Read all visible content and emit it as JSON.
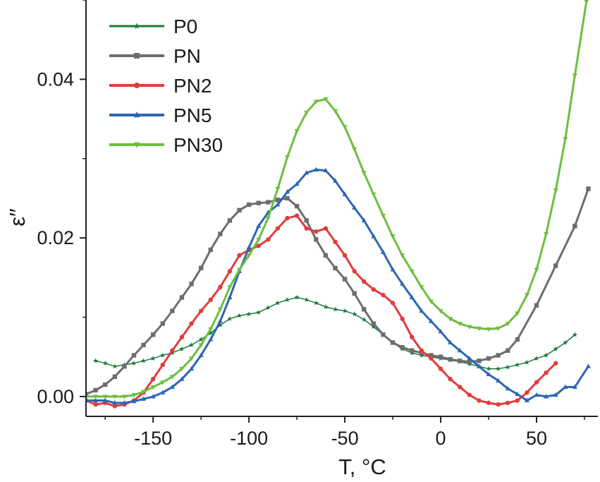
{
  "chart_data": {
    "type": "line",
    "xlabel": "T, °C",
    "ylabel": "ε′′",
    "xlim": [
      -185,
      82
    ],
    "ylim": [
      -0.0025,
      0.05
    ],
    "x_ticks": [
      -150,
      -100,
      -50,
      0,
      50
    ],
    "x_tick_labels": [
      "-150",
      "-100",
      "-50",
      "0",
      "50"
    ],
    "y_ticks": [
      0.0,
      0.02,
      0.04
    ],
    "y_tick_labels": [
      "0.00",
      "0.02",
      "0.04"
    ],
    "legend": {
      "position": "top-left",
      "entries": [
        "P0",
        "PN",
        "PN2",
        "PN5",
        "PN30"
      ]
    },
    "series": [
      {
        "name": "P0",
        "color": "#1e7a3a",
        "marker": "star",
        "x": [
          -180,
          -175,
          -170,
          -165,
          -160,
          -155,
          -150,
          -145,
          -140,
          -135,
          -130,
          -125,
          -120,
          -115,
          -110,
          -105,
          -100,
          -95,
          -90,
          -85,
          -80,
          -75,
          -70,
          -65,
          -60,
          -55,
          -50,
          -45,
          -40,
          -35,
          -30,
          -25,
          -20,
          -15,
          -10,
          -5,
          0,
          5,
          10,
          15,
          20,
          25,
          30,
          35,
          40,
          45,
          50,
          55,
          60,
          65,
          70
        ],
        "values": [
          0.0045,
          0.0042,
          0.0038,
          0.004,
          0.0042,
          0.0045,
          0.0048,
          0.0052,
          0.0055,
          0.006,
          0.0065,
          0.0072,
          0.008,
          0.009,
          0.0098,
          0.0102,
          0.0104,
          0.0106,
          0.0112,
          0.0118,
          0.0122,
          0.0125,
          0.0122,
          0.0118,
          0.0113,
          0.011,
          0.0108,
          0.0104,
          0.0097,
          0.0088,
          0.0078,
          0.0068,
          0.006,
          0.0055,
          0.0052,
          0.005,
          0.0048,
          0.0046,
          0.0044,
          0.0041,
          0.0038,
          0.0035,
          0.0035,
          0.0037,
          0.004,
          0.0043,
          0.0048,
          0.0052,
          0.006,
          0.0068,
          0.0078
        ]
      },
      {
        "name": "PN",
        "color": "#6d6d6d",
        "marker": "square",
        "x": [
          -185,
          -180,
          -175,
          -170,
          -165,
          -160,
          -155,
          -150,
          -145,
          -140,
          -135,
          -130,
          -125,
          -120,
          -115,
          -110,
          -105,
          -100,
          -95,
          -90,
          -85,
          -80,
          -75,
          -70,
          -65,
          -60,
          -55,
          -50,
          -45,
          -40,
          -35,
          -30,
          -25,
          -20,
          -15,
          -10,
          -5,
          0,
          5,
          10,
          15,
          20,
          25,
          30,
          35,
          40,
          50,
          60,
          70,
          77
        ],
        "values": [
          0.0003,
          0.0008,
          0.0015,
          0.0025,
          0.0038,
          0.0052,
          0.0065,
          0.0078,
          0.0092,
          0.0108,
          0.0125,
          0.0142,
          0.0162,
          0.0185,
          0.0205,
          0.0222,
          0.0235,
          0.0242,
          0.0244,
          0.0245,
          0.0248,
          0.025,
          0.024,
          0.0222,
          0.0198,
          0.0178,
          0.0162,
          0.0148,
          0.013,
          0.011,
          0.0092,
          0.0078,
          0.0068,
          0.0062,
          0.0058,
          0.0055,
          0.0052,
          0.005,
          0.0047,
          0.0045,
          0.0044,
          0.0045,
          0.0048,
          0.0052,
          0.0058,
          0.0072,
          0.0115,
          0.0165,
          0.0215,
          0.0262
        ]
      },
      {
        "name": "PN2",
        "color": "#e23c3c",
        "marker": "circle",
        "x": [
          -185,
          -180,
          -175,
          -170,
          -165,
          -160,
          -155,
          -150,
          -145,
          -140,
          -135,
          -130,
          -125,
          -120,
          -115,
          -110,
          -105,
          -100,
          -95,
          -90,
          -85,
          -80,
          -75,
          -70,
          -65,
          -60,
          -55,
          -50,
          -45,
          -40,
          -35,
          -30,
          -25,
          -20,
          -15,
          -10,
          -5,
          0,
          5,
          10,
          15,
          20,
          25,
          30,
          35,
          40,
          45,
          50,
          55,
          60
        ],
        "values": [
          -0.0005,
          -0.001,
          -0.0008,
          -0.0012,
          -0.001,
          -0.0005,
          0.0005,
          0.0022,
          0.004,
          0.0058,
          0.0075,
          0.0092,
          0.0108,
          0.0122,
          0.0138,
          0.0158,
          0.0178,
          0.0185,
          0.019,
          0.0198,
          0.0212,
          0.0225,
          0.0228,
          0.0212,
          0.0208,
          0.0212,
          0.0195,
          0.0178,
          0.0158,
          0.0145,
          0.0135,
          0.0128,
          0.0118,
          0.0098,
          0.0075,
          0.0058,
          0.0048,
          0.0035,
          0.0022,
          0.0012,
          0.0002,
          -0.0005,
          -0.0008,
          -0.001,
          -0.0008,
          -0.0005,
          0.0005,
          0.0018,
          0.003,
          0.0042
        ]
      },
      {
        "name": "PN5",
        "color": "#2f66b3",
        "marker": "triangle-up",
        "x": [
          -185,
          -180,
          -175,
          -170,
          -165,
          -160,
          -155,
          -150,
          -145,
          -140,
          -135,
          -130,
          -125,
          -120,
          -115,
          -110,
          -105,
          -100,
          -95,
          -90,
          -85,
          -80,
          -75,
          -70,
          -65,
          -60,
          -55,
          -50,
          -45,
          -40,
          -35,
          -30,
          -25,
          -20,
          -15,
          -10,
          -5,
          0,
          5,
          10,
          15,
          20,
          25,
          30,
          35,
          40,
          45,
          50,
          55,
          60,
          65,
          70,
          77
        ],
        "values": [
          -0.0005,
          -0.0005,
          -0.0005,
          -0.0008,
          -0.0008,
          -0.0006,
          -0.0003,
          0.0,
          0.0005,
          0.0012,
          0.0022,
          0.0035,
          0.0052,
          0.0072,
          0.0095,
          0.0125,
          0.0158,
          0.0188,
          0.0215,
          0.0232,
          0.0242,
          0.0258,
          0.0268,
          0.0282,
          0.0286,
          0.0285,
          0.0272,
          0.0255,
          0.0238,
          0.0222,
          0.0202,
          0.0182,
          0.016,
          0.0142,
          0.0125,
          0.0108,
          0.0095,
          0.0082,
          0.0068,
          0.0058,
          0.0048,
          0.0038,
          0.0028,
          0.002,
          0.001,
          0.0003,
          -0.0005,
          0.0002,
          0.0,
          0.0002,
          0.0012,
          0.0012,
          0.0038
        ]
      },
      {
        "name": "PN30",
        "color": "#6cbf3f",
        "marker": "triangle-down",
        "x": [
          -185,
          -180,
          -175,
          -170,
          -165,
          -160,
          -155,
          -150,
          -145,
          -140,
          -135,
          -130,
          -125,
          -120,
          -115,
          -110,
          -105,
          -100,
          -95,
          -90,
          -85,
          -80,
          -75,
          -70,
          -65,
          -60,
          -55,
          -50,
          -45,
          -40,
          -35,
          -30,
          -25,
          -20,
          -15,
          -10,
          -5,
          0,
          5,
          10,
          15,
          20,
          25,
          30,
          35,
          40,
          45,
          50,
          55,
          60,
          65,
          70,
          76
        ],
        "values": [
          0.0,
          0.0,
          0.0,
          0.0,
          0.0,
          0.0002,
          0.0006,
          0.0012,
          0.0018,
          0.0025,
          0.0035,
          0.0048,
          0.0065,
          0.0085,
          0.011,
          0.0138,
          0.016,
          0.0178,
          0.0198,
          0.0225,
          0.0262,
          0.0302,
          0.0335,
          0.0358,
          0.0372,
          0.0375,
          0.036,
          0.034,
          0.0312,
          0.0282,
          0.0255,
          0.0228,
          0.0202,
          0.0178,
          0.0158,
          0.0138,
          0.012,
          0.0108,
          0.0098,
          0.0092,
          0.0088,
          0.0086,
          0.0085,
          0.0086,
          0.0092,
          0.0105,
          0.0128,
          0.016,
          0.0205,
          0.026,
          0.0325,
          0.0405,
          0.0498
        ]
      }
    ]
  }
}
